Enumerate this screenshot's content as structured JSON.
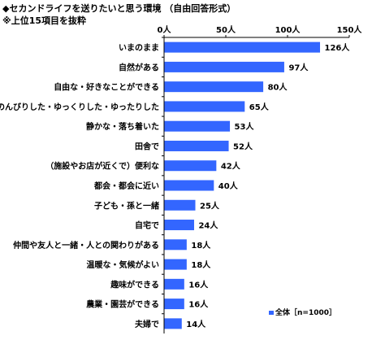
{
  "title": "◆セカンドライフを送りたいと思う環境 （自由回答形式）",
  "subtitle": "※上位15項目を抜粋",
  "chart_data": {
    "type": "bar",
    "orientation": "horizontal",
    "categories": [
      "いまのまま",
      "自然がある",
      "自由な・好きなことができる",
      "のんびりした・ゆっくりした・ゆったりした",
      "静かな・落ち着いた",
      "田舎で",
      "（施設やお店が近くで）便利な",
      "都会・都会に近い",
      "子ども・孫と一緒",
      "自宅で",
      "仲間や友人と一緒・人との関わりがある",
      "温暖な・気候がよい",
      "趣味ができる",
      "農業・園芸ができる",
      "夫婦で"
    ],
    "series": [
      {
        "name": "全体［n=1000］",
        "values": [
          126,
          97,
          80,
          65,
          53,
          52,
          42,
          40,
          25,
          24,
          18,
          18,
          16,
          16,
          14
        ],
        "labels": [
          "126人",
          "97人",
          "80人",
          "65人",
          "53人",
          "52人",
          "42人",
          "40人",
          "25人",
          "24人",
          "18人",
          "18人",
          "16人",
          "16人",
          "14人"
        ]
      }
    ],
    "xlim": [
      0,
      150
    ],
    "xticks": [
      0,
      50,
      100,
      150
    ],
    "xtick_labels": [
      "0人",
      "50人",
      "100人",
      "150人"
    ],
    "legend_position": "bottom-right",
    "bar_color": "#3366ff"
  }
}
